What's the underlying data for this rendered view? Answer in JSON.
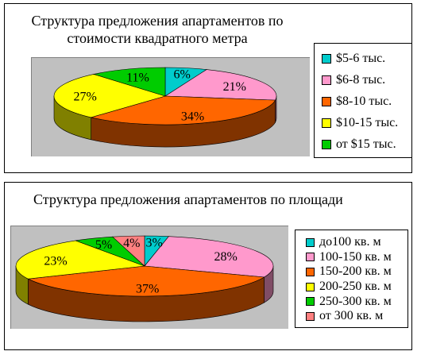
{
  "chart_data": [
    {
      "type": "pie",
      "title": "Структура предложения апартаментов по стоимости квадратного метра",
      "title_lines": [
        "Структура предложения апартаментов по",
        "стоимости квадратного метра"
      ],
      "categories": [
        "$5-6 тыс.",
        "$6-8 тыс.",
        "$8-10 тыс.",
        "$10-15 тыс.",
        "от $15 тыс."
      ],
      "values": [
        6,
        21,
        34,
        27,
        11
      ],
      "labels": [
        "6%",
        "21%",
        "34%",
        "27%",
        "11%"
      ],
      "colors": [
        "#00cccc",
        "#ff99cc",
        "#ff6600",
        "#ffff00",
        "#00cc00"
      ],
      "legend_position": "right",
      "style": "3d"
    },
    {
      "type": "pie",
      "title": "Структура предложения апартаментов по площади",
      "title_lines": [
        "Структура предложения апартаментов по площади"
      ],
      "categories": [
        "до100 кв. м",
        "100-150 кв. м",
        "150-200 кв. м",
        "200-250 кв. м",
        "250-300 кв. м",
        "от 300 кв. м"
      ],
      "values": [
        3,
        28,
        37,
        23,
        5,
        4
      ],
      "labels": [
        "3%",
        "28%",
        "37%",
        "23%",
        "5%",
        "4%"
      ],
      "colors": [
        "#00cccc",
        "#ff99cc",
        "#ff6600",
        "#ffff00",
        "#00cc00",
        "#ff8080"
      ],
      "legend_position": "right",
      "style": "3d"
    }
  ]
}
